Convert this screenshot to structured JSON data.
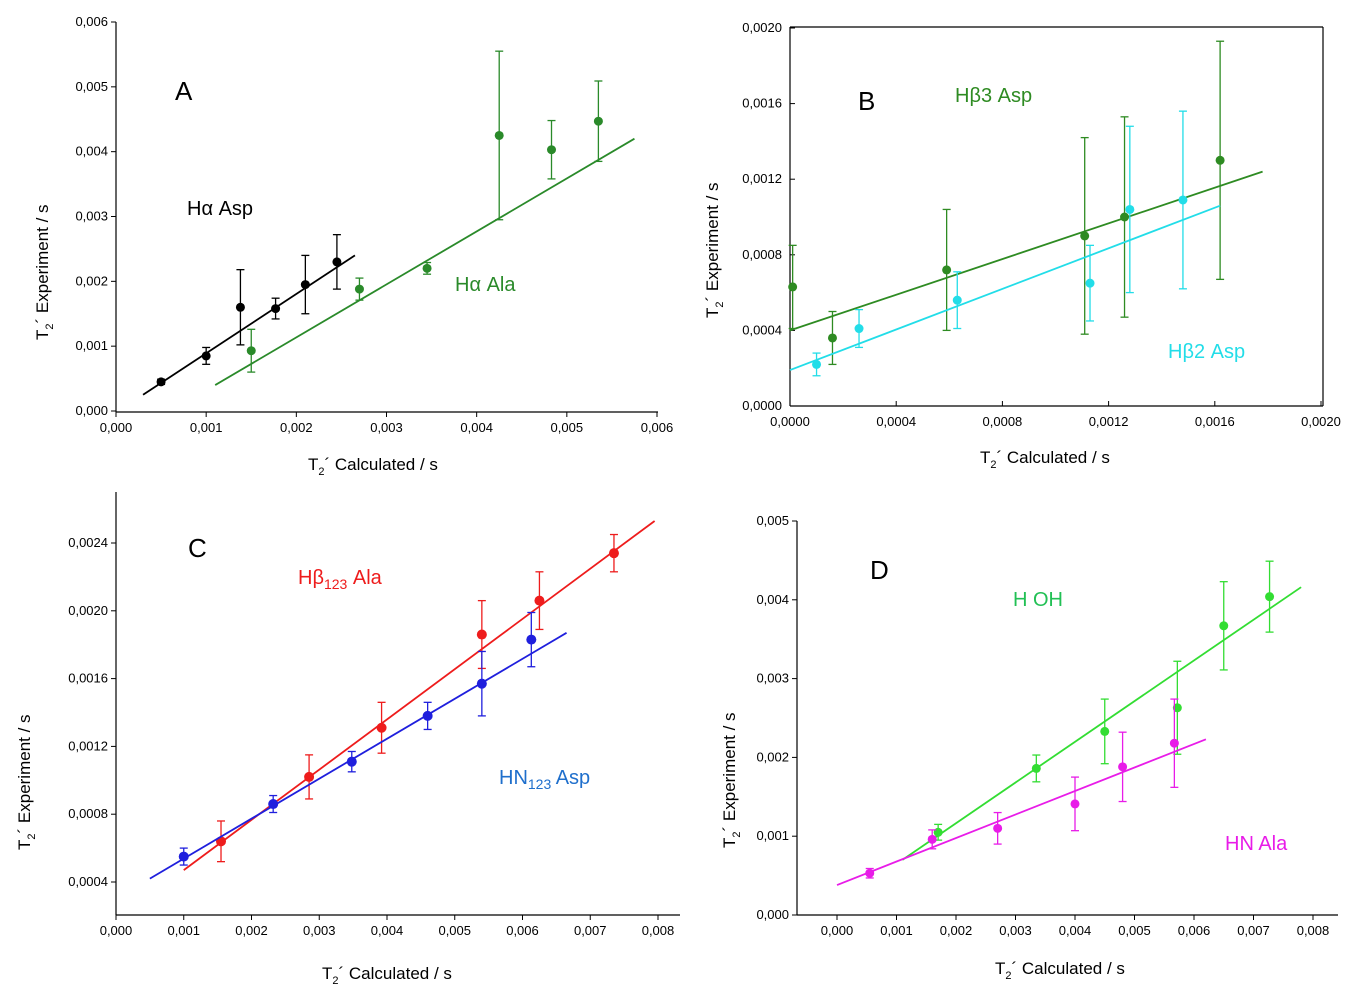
{
  "chart_data": [
    {
      "panel": "A",
      "type": "scatter",
      "xlabel": "T₂´ Calculated / s",
      "ylabel": "T₂´ Experiment / s",
      "xlim": [
        0,
        0.0065
      ],
      "ylim": [
        0,
        0.006
      ],
      "xticks": [
        "0,000",
        "0,001",
        "0,002",
        "0,003",
        "0,004",
        "0,005",
        "0,006"
      ],
      "yticks": [
        "0,000",
        "0,001",
        "0,002",
        "0,003",
        "0,004",
        "0,005",
        "0,006"
      ],
      "series": [
        {
          "name": "Hα Asp",
          "color": "#000000",
          "x": [
            0.0005,
            0.001,
            0.00138,
            0.00177,
            0.0021,
            0.00245
          ],
          "y": [
            0.00045,
            0.00085,
            0.0016,
            0.00158,
            0.00195,
            0.0023
          ],
          "err": [
            4e-05,
            0.00013,
            0.00058,
            0.00016,
            0.00045,
            0.00042
          ],
          "fit": [
            [
              0.0003,
              0.00025
            ],
            [
              0.00265,
              0.0024
            ]
          ]
        },
        {
          "name": "Hα Ala",
          "color": "#2a8a2a",
          "x": [
            0.0015,
            0.0027,
            0.00345,
            0.00425,
            0.00483,
            0.00535
          ],
          "y": [
            0.00093,
            0.00188,
            0.0022,
            0.00425,
            0.00403,
            0.00447
          ],
          "err": [
            0.00033,
            0.00017,
            9e-05,
            0.0013,
            0.00045,
            0.00062
          ],
          "fit": [
            [
              0.0011,
              0.0004
            ],
            [
              0.00575,
              0.0042
            ]
          ]
        }
      ]
    },
    {
      "panel": "B",
      "type": "scatter",
      "xlabel": "T₂´ Calculated / s",
      "ylabel": "T₂´ Experiment / s",
      "xlim": [
        0,
        0.002
      ],
      "ylim": [
        0,
        0.002
      ],
      "xticks": [
        "0,0000",
        "0,0004",
        "0,0008",
        "0,0012",
        "0,0016",
        "0,0020"
      ],
      "yticks": [
        "0,0000",
        "0,0004",
        "0,0008",
        "0,0012",
        "0,0016",
        "0,0020"
      ],
      "series": [
        {
          "name": "Hβ3 Asp",
          "color": "#2e8b22",
          "x": [
            1e-05,
            0.00016,
            0.00059,
            0.00111,
            0.00126,
            0.00162
          ],
          "y": [
            0.00063,
            0.00036,
            0.00072,
            0.0009,
            0.001,
            0.0013
          ],
          "err": [
            0.00022,
            0.00014,
            0.00032,
            0.00052,
            0.00053,
            0.00063
          ],
          "fit": [
            [
              0,
              0.0004
            ],
            [
              0.00178,
              0.00124
            ]
          ]
        },
        {
          "name": "Hβ2 Asp",
          "color": "#22dde8",
          "x": [
            0.0001,
            0.00026,
            0.00063,
            0.00113,
            0.00128,
            0.00148
          ],
          "y": [
            0.00022,
            0.00041,
            0.00056,
            0.00065,
            0.00104,
            0.00109
          ],
          "err": [
            6e-05,
            0.0001,
            0.00015,
            0.0002,
            0.00044,
            0.00047
          ],
          "fit": [
            [
              0,
              0.00019
            ],
            [
              0.00162,
              0.00106
            ]
          ]
        }
      ]
    },
    {
      "panel": "C",
      "type": "scatter",
      "xlabel": "T₂´ Calculated / s",
      "ylabel": "T₂´ Experiment / s",
      "xlim": [
        0,
        0.0083
      ],
      "ylim": [
        0.0002,
        0.0028
      ],
      "xticks": [
        "0,000",
        "0,001",
        "0,002",
        "0,003",
        "0,004",
        "0,005",
        "0,006",
        "0,007",
        "0,008"
      ],
      "yticks": [
        "0,0004",
        "0,0008",
        "0,0012",
        "0,0016",
        "0,0020",
        "0,0024"
      ],
      "series": [
        {
          "name": "Hβ123 Ala",
          "color": "#ee1c1c",
          "x": [
            0.00155,
            0.00285,
            0.00392,
            0.0054,
            0.00625,
            0.00735
          ],
          "y": [
            0.00064,
            0.00102,
            0.00131,
            0.00186,
            0.00206,
            0.00234
          ],
          "err": [
            0.00012,
            0.00013,
            0.00015,
            0.0002,
            0.00017,
            0.00011
          ],
          "fit": [
            [
              0.001,
              0.00047
            ],
            [
              0.00795,
              0.00253
            ]
          ]
        },
        {
          "name": "HN123 Asp",
          "color": "#1f1fdd",
          "x": [
            0.001,
            0.00232,
            0.00348,
            0.0046,
            0.0054,
            0.00613
          ],
          "y": [
            0.00055,
            0.00086,
            0.00111,
            0.00138,
            0.00157,
            0.00183
          ],
          "err": [
            5e-05,
            5e-05,
            6e-05,
            8e-05,
            0.00019,
            0.00016
          ],
          "fit": [
            [
              0.0005,
              0.00042
            ],
            [
              0.00665,
              0.00187
            ]
          ]
        }
      ]
    },
    {
      "panel": "D",
      "type": "scatter",
      "xlabel": "T₂´ Calculated / s",
      "ylabel": "T₂´ Experiment / s",
      "xlim": [
        -0.0008,
        0.0083
      ],
      "ylim": [
        0,
        0.005
      ],
      "xticks": [
        "0,000",
        "0,001",
        "0,002",
        "0,003",
        "0,004",
        "0,005",
        "0,006",
        "0,007",
        "0,008"
      ],
      "yticks": [
        "0,000",
        "0,001",
        "0,002",
        "0,003",
        "0,004",
        "0,005"
      ],
      "series": [
        {
          "name": "H OH",
          "color": "#33dd33",
          "x": [
            0.0017,
            0.00335,
            0.0045,
            0.00572,
            0.0065,
            0.00727
          ],
          "y": [
            0.00105,
            0.00186,
            0.00233,
            0.00263,
            0.00367,
            0.00404
          ],
          "err": [
            0.0001,
            0.00017,
            0.00041,
            0.00059,
            0.00056,
            0.00045
          ],
          "fit": [
            [
              0.0011,
              0.0007
            ],
            [
              0.0078,
              0.00416
            ]
          ]
        },
        {
          "name": "HN Ala",
          "color": "#e81ce8",
          "x": [
            0.00055,
            0.0016,
            0.0027,
            0.004,
            0.0048,
            0.00567
          ],
          "y": [
            0.00053,
            0.00096,
            0.0011,
            0.00141,
            0.00188,
            0.00218
          ],
          "err": [
            6e-05,
            0.00012,
            0.0002,
            0.00034,
            0.00044,
            0.00056
          ],
          "fit": [
            [
              0,
              0.00038
            ],
            [
              0.0062,
              0.00223
            ]
          ]
        }
      ]
    }
  ],
  "labels": {
    "A": {
      "panel": "A",
      "s1": "Hα Asp",
      "s2": "Hα Ala"
    },
    "B": {
      "panel": "B",
      "s1": "Hβ3 Asp",
      "s2": "Hβ2 Asp"
    },
    "C": {
      "panel": "C",
      "s1_main": "Hβ",
      "s1_sub": "123",
      "s1_tail": " Ala",
      "s2_main": "HN",
      "s2_sub": "123",
      "s2_tail": " Asp"
    },
    "D": {
      "panel": "D",
      "s1": "H OH",
      "s2": "HN Ala"
    },
    "axes": {
      "t": "T",
      "sub": "2",
      "x_rest": "´ Calculated / s",
      "y_rest": "´ Experiment / s"
    }
  }
}
